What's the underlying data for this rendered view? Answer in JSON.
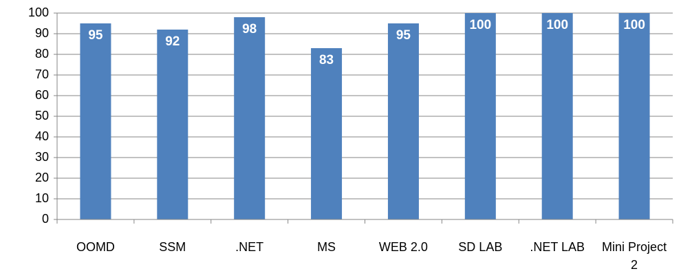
{
  "chart_data": {
    "type": "bar",
    "categories": [
      "OOMD",
      "SSM",
      ".NET",
      "MS",
      "WEB 2.0",
      "SD LAB",
      ".NET LAB",
      "Mini Project 2"
    ],
    "values": [
      95,
      92,
      98,
      83,
      95,
      100,
      100,
      100
    ],
    "color": "#4f81bd",
    "ylim": [
      0,
      100
    ],
    "yticks": [
      0,
      10,
      20,
      30,
      40,
      50,
      60,
      70,
      80,
      90,
      100
    ],
    "grid": true
  }
}
